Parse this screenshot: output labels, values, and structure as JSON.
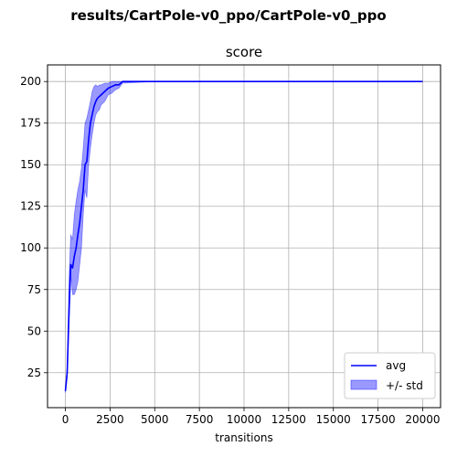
{
  "figure": {
    "suptitle": "results/CartPole-v0_ppo/CartPole-v0_ppo"
  },
  "chart_data": {
    "type": "line",
    "title": "score",
    "xlabel": "transitions",
    "ylabel": "",
    "xlim": [
      -1000,
      21000
    ],
    "ylim": [
      4,
      210
    ],
    "grid": true,
    "legend_position": "lower-right",
    "xticks": [
      0,
      2500,
      5000,
      7500,
      10000,
      12500,
      15000,
      17500,
      20000
    ],
    "yticks": [
      25,
      50,
      75,
      100,
      125,
      150,
      175,
      200
    ],
    "series": [
      {
        "name": "avg",
        "color": "#0000ff",
        "x": [
          0,
          100,
          200,
          300,
          400,
          500,
          600,
          700,
          800,
          900,
          1000,
          1100,
          1200,
          1300,
          1400,
          1500,
          1600,
          1700,
          1800,
          1900,
          2000,
          2200,
          2400,
          2600,
          2800,
          3000,
          3200,
          5000,
          10000,
          15000,
          20000
        ],
        "y": [
          14,
          25,
          60,
          90,
          88,
          95,
          100,
          108,
          115,
          125,
          135,
          150,
          152,
          165,
          175,
          180,
          185,
          188,
          190,
          191,
          192,
          194,
          196,
          197,
          198,
          198,
          200,
          200,
          200,
          200,
          200
        ]
      },
      {
        "name": "+/- std",
        "type": "band",
        "color": "#0000ff",
        "opacity": 0.4,
        "x": [
          0,
          100,
          200,
          300,
          400,
          500,
          600,
          700,
          800,
          900,
          1000,
          1100,
          1200,
          1300,
          1400,
          1500,
          1600,
          1700,
          1800,
          1900,
          2000,
          2200,
          2400,
          2600,
          2800,
          3000,
          3200,
          5000,
          10000,
          15000,
          20000
        ],
        "upper": [
          15,
          28,
          80,
          108,
          105,
          120,
          128,
          135,
          140,
          148,
          160,
          175,
          178,
          183,
          188,
          194,
          197,
          198,
          197,
          198,
          198,
          199,
          199,
          200,
          200,
          200,
          200,
          200,
          200,
          200,
          200
        ],
        "lower": [
          13,
          22,
          55,
          85,
          72,
          72,
          75,
          80,
          90,
          100,
          120,
          135,
          130,
          150,
          160,
          168,
          175,
          180,
          182,
          183,
          186,
          188,
          192,
          193,
          195,
          196,
          199,
          200,
          200,
          200,
          200
        ]
      }
    ]
  }
}
